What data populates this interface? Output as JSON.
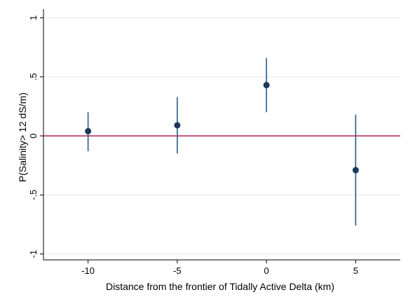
{
  "chart_data": {
    "type": "scatter",
    "title": "",
    "xlabel": "Distance from the frontier of Tidally Active Delta (km)",
    "ylabel": "P(Salinity> 12 dS/m)",
    "xlim": [
      -12.5,
      7.5
    ],
    "ylim": [
      -1.05,
      1.05
    ],
    "x_ticks": [
      -10,
      -5,
      0,
      5
    ],
    "x_tick_labels": [
      "-10",
      "-5",
      "0",
      "5"
    ],
    "y_ticks": [
      -1,
      -0.5,
      0,
      0.5,
      1
    ],
    "y_tick_labels": [
      "-1",
      "-.5",
      "0",
      ".5",
      "1"
    ],
    "grid": "horizontal",
    "reference_line": {
      "y": 0,
      "color": "#b0245a"
    },
    "series": [
      {
        "points": [
          {
            "x": -10,
            "y": 0.04,
            "lo": -0.13,
            "hi": 0.2
          },
          {
            "x": -5,
            "y": 0.09,
            "lo": -0.15,
            "hi": 0.33
          },
          {
            "x": 0,
            "y": 0.43,
            "lo": 0.2,
            "hi": 0.66
          },
          {
            "x": 5,
            "y": -0.29,
            "lo": -0.76,
            "hi": 0.18
          }
        ],
        "marker_color": "#1a3a5c",
        "ci_color": "#2b5a80"
      }
    ]
  }
}
